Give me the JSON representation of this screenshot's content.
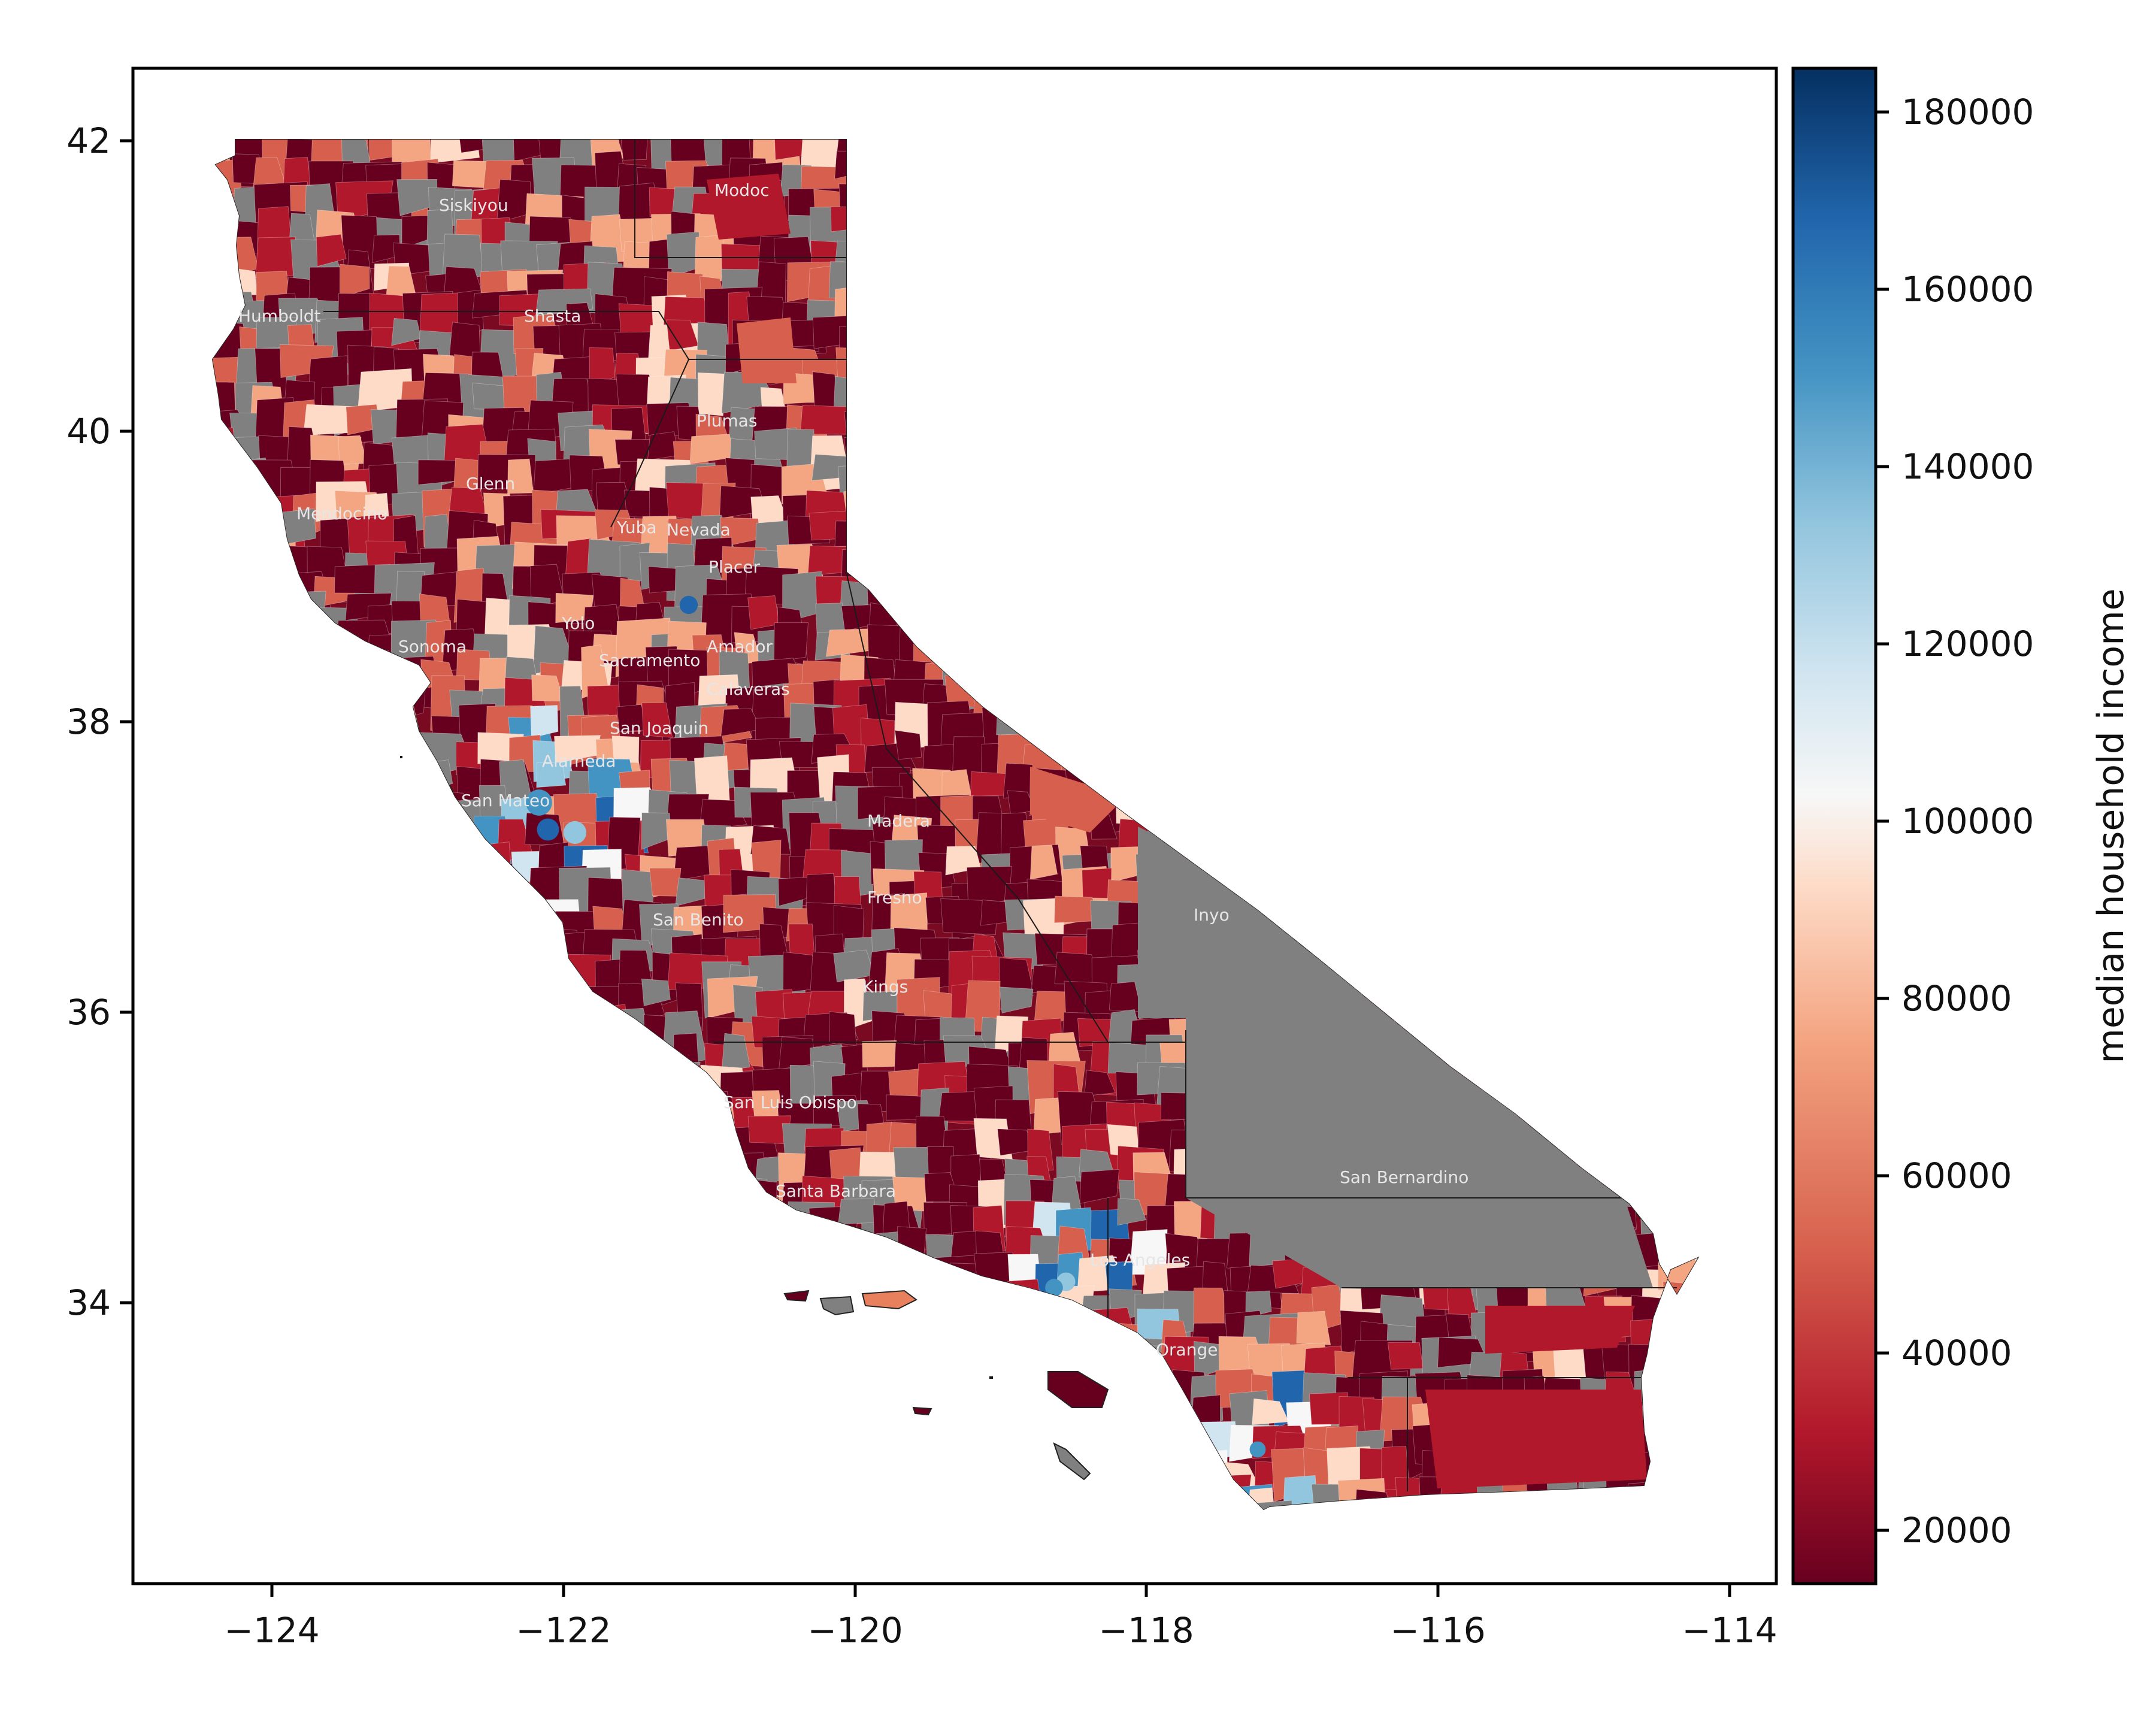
{
  "map": {
    "x_axis": {
      "ticks": [
        "−124",
        "−122",
        "−120",
        "−118",
        "−116",
        "−114"
      ]
    },
    "y_axis": {
      "ticks": [
        "42",
        "40",
        "38",
        "36",
        "34"
      ]
    },
    "colorbar": {
      "label": "median household income",
      "ticks": [
        "180000",
        "160000",
        "140000",
        "120000",
        "100000",
        "80000",
        "60000",
        "40000",
        "20000"
      ],
      "colormap": "RdBu",
      "colors": [
        "#67001f",
        "#b2182b",
        "#d6604d",
        "#f4a582",
        "#fddbc7",
        "#f7f7f7",
        "#d1e5f0",
        "#92c5de",
        "#4393c3",
        "#2166ac",
        "#053061"
      ],
      "no_data_color": "#808080"
    },
    "county_labels": [
      "Siskiyou",
      "Modoc",
      "Humboldt",
      "Shasta",
      "Plumas",
      "Glenn",
      "Mendocino",
      "Yuba",
      "Nevada",
      "Placer",
      "Yolo",
      "Sonoma",
      "Amador",
      "Sacramento",
      "Calaveras",
      "San Joaquin",
      "Alameda",
      "San Mateo",
      "Madera",
      "Inyo",
      "Fresno",
      "San Benito",
      "Kings",
      "San Luis Obispo",
      "San Bernardino",
      "Santa Barbara",
      "Los Angeles",
      "Orange"
    ]
  }
}
